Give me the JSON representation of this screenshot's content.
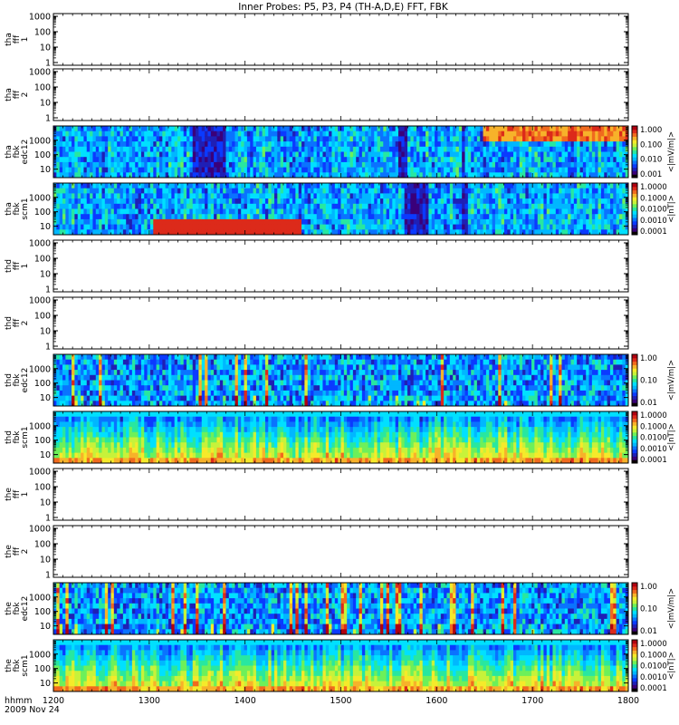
{
  "chart_data": {
    "type": "heatmap",
    "title": "Inner Probes: P5, P3, P4 (TH-A,D,E) FFT, FBK",
    "xaxis": {
      "label": "hhmm",
      "date": "2009 Nov 24",
      "range": [
        1200,
        1800
      ],
      "ticks": [
        "1200",
        "1300",
        "1400",
        "1500",
        "1600",
        "1700",
        "1800"
      ]
    },
    "panels": [
      {
        "id": "tha_fff_1",
        "label_lines": [
          "tha",
          "fff",
          "1"
        ],
        "type": "empty",
        "y_ticks": [
          "1000",
          "100",
          "10",
          "1"
        ],
        "ylim": [
          1,
          1000
        ],
        "scale": "log"
      },
      {
        "id": "tha_fff_2",
        "label_lines": [
          "tha",
          "fff",
          "2"
        ],
        "type": "empty",
        "y_ticks": [
          "1000",
          "100",
          "10",
          "1"
        ],
        "ylim": [
          1,
          1000
        ],
        "scale": "log"
      },
      {
        "id": "tha_fbk_edc12",
        "label_lines": [
          "tha",
          "fbk",
          "edc12"
        ],
        "type": "spectrogram",
        "y_ticks": [
          "1000",
          "100",
          "10"
        ],
        "colorbar": {
          "label": "<|mV/m|>",
          "ticks": [
            "1.000",
            "0.100",
            "0.010",
            "0.001"
          ]
        },
        "features": [
          {
            "kind": "dark_band",
            "from": 1345,
            "to": 1380,
            "note": "black/blue"
          },
          {
            "kind": "dark_band",
            "from": 1560,
            "to": 1570
          },
          {
            "kind": "dark_band",
            "from": 1625,
            "to": 1630
          },
          {
            "kind": "hot_band",
            "from": 1650,
            "to": 1800,
            "note": "red at high frequency"
          }
        ]
      },
      {
        "id": "tha_fbk_scm1",
        "label_lines": [
          "tha",
          "fbk",
          "scm1"
        ],
        "type": "spectrogram",
        "y_ticks": [
          "1000",
          "100",
          "10"
        ],
        "colorbar": {
          "label": "<|nT|>",
          "ticks": [
            "1.0000",
            "0.1000",
            "0.0100",
            "0.0010",
            "0.0001"
          ]
        },
        "features": [
          {
            "kind": "hot_band",
            "from": 1305,
            "to": 1460,
            "note": "yellow-red at low frequency"
          },
          {
            "kind": "dark_band",
            "from": 1565,
            "to": 1590
          },
          {
            "kind": "dark_band",
            "from": 1625,
            "to": 1632
          }
        ]
      },
      {
        "id": "thd_fff_1",
        "label_lines": [
          "thd",
          "fff",
          "1"
        ],
        "type": "empty",
        "y_ticks": [
          "1000",
          "100",
          "10",
          "1"
        ],
        "ylim": [
          1,
          1000
        ],
        "scale": "log"
      },
      {
        "id": "thd_fff_2",
        "label_lines": [
          "thd",
          "fff",
          "2"
        ],
        "type": "empty",
        "y_ticks": [
          "1000",
          "100",
          "10",
          "1"
        ],
        "ylim": [
          1,
          1000
        ],
        "scale": "log"
      },
      {
        "id": "thd_fbk_edc12",
        "label_lines": [
          "thd",
          "fbk",
          "edc12"
        ],
        "type": "spectrogram",
        "y_ticks": [
          "1000",
          "100",
          "10"
        ],
        "colorbar": {
          "label": "<|mV/m|>",
          "ticks": [
            "1.00",
            "0.10",
            "0.01"
          ]
        },
        "features": [
          {
            "kind": "noisy",
            "from": 1200,
            "to": 1800
          }
        ]
      },
      {
        "id": "thd_fbk_scm1",
        "label_lines": [
          "thd",
          "fbk",
          "scm1"
        ],
        "type": "spectrogram",
        "y_ticks": [
          "1000",
          "100",
          "10"
        ],
        "colorbar": {
          "label": "<|nT|>",
          "ticks": [
            "1.0000",
            "0.1000",
            "0.0100",
            "0.0010",
            "0.0001"
          ]
        },
        "features": [
          {
            "kind": "layered",
            "from": 1200,
            "to": 1800
          }
        ]
      },
      {
        "id": "the_fff_1",
        "label_lines": [
          "the",
          "fff",
          "1"
        ],
        "type": "empty",
        "y_ticks": [
          "1000",
          "100",
          "10",
          "1"
        ],
        "ylim": [
          1,
          1000
        ],
        "scale": "log"
      },
      {
        "id": "the_fff_2",
        "label_lines": [
          "the",
          "fff",
          "2"
        ],
        "type": "empty",
        "y_ticks": [
          "1000",
          "100",
          "10",
          "1"
        ],
        "ylim": [
          1,
          1000
        ],
        "scale": "log"
      },
      {
        "id": "the_fbk_edc12",
        "label_lines": [
          "the",
          "fbk",
          "edc12"
        ],
        "type": "spectrogram",
        "y_ticks": [
          "1000",
          "100",
          "10"
        ],
        "colorbar": {
          "label": "<|mV/m|>",
          "ticks": [
            "1.00",
            "0.10",
            "0.01"
          ]
        },
        "features": [
          {
            "kind": "noisy",
            "from": 1200,
            "to": 1800
          }
        ]
      },
      {
        "id": "the_fbk_scm1",
        "label_lines": [
          "the",
          "fbk",
          "scm1"
        ],
        "type": "spectrogram",
        "y_ticks": [
          "1000",
          "100",
          "10"
        ],
        "colorbar": {
          "label": "<|nT|>",
          "ticks": [
            "1.0000",
            "0.1000",
            "0.0100",
            "0.0010",
            "0.0001"
          ]
        },
        "features": [
          {
            "kind": "layered",
            "from": 1200,
            "to": 1800
          }
        ]
      }
    ],
    "colormap": [
      "#0a0000",
      "#3a007a",
      "#1f1fb5",
      "#0b3aff",
      "#0a73ff",
      "#00b7ff",
      "#00e0ff",
      "#28e7a0",
      "#6df05a",
      "#c7f23a",
      "#f5ea2a",
      "#f7b22a",
      "#f06a1e",
      "#dc2a1a",
      "#b00010"
    ],
    "grid": false,
    "legend": "colorbars-right"
  }
}
